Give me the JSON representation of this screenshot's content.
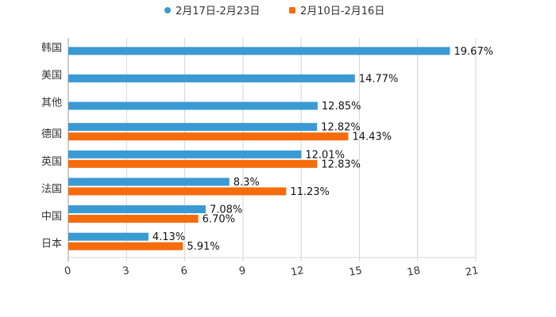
{
  "chart_data": {
    "type": "bar",
    "orientation": "horizontal",
    "title": "",
    "xlabel": "",
    "ylabel": "",
    "xlim": [
      0,
      21
    ],
    "xticks": [
      0,
      3,
      6,
      9,
      12,
      15,
      18,
      21
    ],
    "grid": true,
    "legend_position": "top-center",
    "categories": [
      "韩国",
      "美国",
      "其他",
      "德国",
      "英国",
      "法国",
      "中国",
      "日本"
    ],
    "series": [
      {
        "name": "2月17日-2月23日",
        "color": "#3a9ad3",
        "values": [
          19.67,
          14.77,
          12.85,
          12.82,
          12.01,
          8.3,
          7.08,
          4.13
        ],
        "labels": [
          "19.67%",
          "14.77%",
          "12.85%",
          "12.82%",
          "12.01%",
          "8.3%",
          "7.08%",
          "4.13%"
        ]
      },
      {
        "name": "2月10日-2月16日",
        "color": "#f66c0c",
        "values": [
          null,
          null,
          null,
          14.43,
          12.83,
          11.23,
          6.7,
          5.91
        ],
        "labels": [
          null,
          null,
          null,
          "14.43%",
          "12.83%",
          "11.23%",
          "6.70%",
          "5.91%"
        ]
      }
    ]
  }
}
